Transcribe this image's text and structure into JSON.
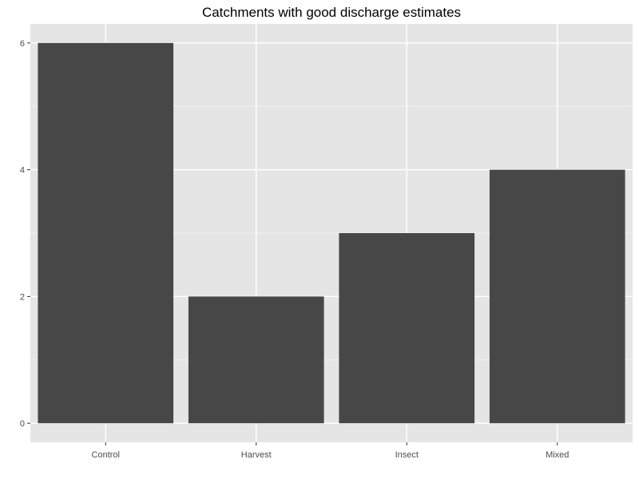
{
  "chart_data": {
    "type": "bar",
    "title": "Catchments with good discharge estimates",
    "xlabel": "",
    "ylabel": "",
    "categories": [
      "Control",
      "Harvest",
      "Insect",
      "Mixed"
    ],
    "values": [
      6,
      2,
      3,
      4
    ],
    "ylim": [
      -0.3,
      6.3
    ],
    "yticks": [
      0,
      2,
      4,
      6
    ],
    "yminor": [
      1,
      3,
      5
    ],
    "grid": true,
    "legend": "none",
    "colors": {
      "bar": "#474747",
      "panel": "#e5e5e5",
      "grid_major": "#ffffff",
      "grid_minor": "#f2f2f2",
      "text": "#4d4d4d",
      "title": "#000000"
    }
  }
}
